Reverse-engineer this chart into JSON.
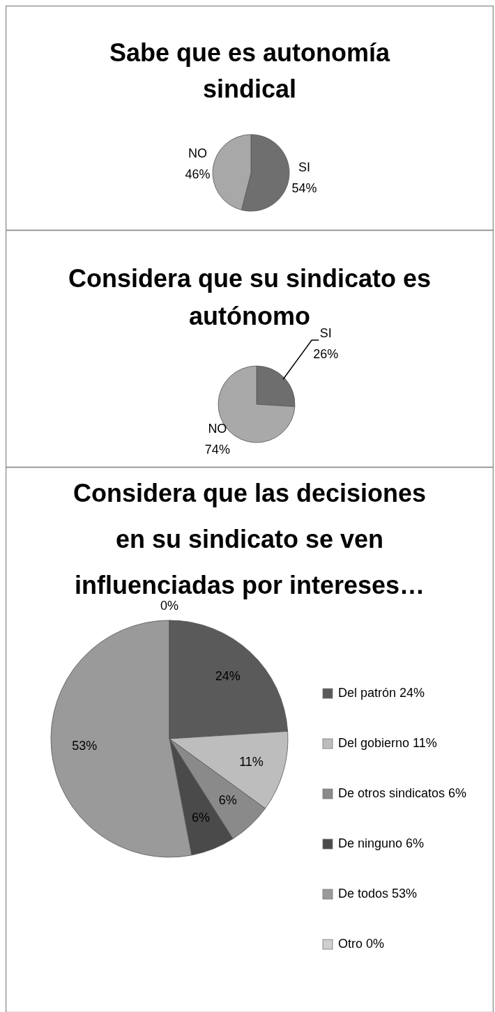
{
  "chart_data": [
    {
      "type": "pie",
      "title": "Sabe que es autonomía sindical",
      "categories": [
        "SI",
        "NO"
      ],
      "values": [
        54,
        46
      ],
      "value_labels": [
        "54%",
        "46%"
      ],
      "colors": [
        "#6f6f6f",
        "#a8a8a8"
      ]
    },
    {
      "type": "pie",
      "title": "Considera que su sindicato es autónomo",
      "categories": [
        "SI",
        "NO"
      ],
      "values": [
        26,
        74
      ],
      "value_labels": [
        "26%",
        "74%"
      ],
      "colors": [
        "#6e6e6e",
        "#a9a9a9"
      ]
    },
    {
      "type": "pie",
      "title": "Considera que las decisiones en su sindicato se ven influenciadas por intereses…",
      "categories": [
        "Del patrón 24%",
        "Del gobierno 11%",
        "De otros sindicatos 6%",
        "De ninguno 6%",
        "De todos 53%",
        "Otro 0%"
      ],
      "values": [
        24,
        11,
        6,
        6,
        53,
        0
      ],
      "value_labels": [
        "24%",
        "11%",
        "6%",
        "6%",
        "53%",
        "0%"
      ],
      "colors": [
        "#5a5a5a",
        "#bdbdbd",
        "#8a8a8a",
        "#4a4a4a",
        "#9a9a9a",
        "#cfcfcf"
      ],
      "legend": "right"
    }
  ]
}
